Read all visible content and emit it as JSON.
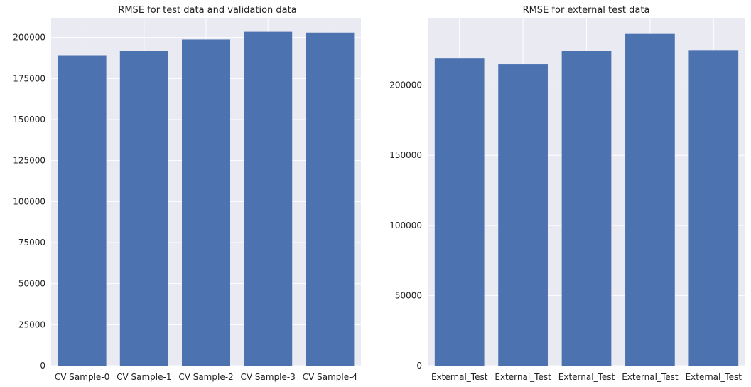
{
  "colors": {
    "bar": "#4c72b0",
    "plot_background": "#eaeaf2",
    "grid": "#ffffff"
  },
  "chart_data": [
    {
      "type": "bar",
      "title": "RMSE for test data and validation data",
      "categories": [
        "CV Sample-0",
        "CV Sample-1",
        "CV Sample-2",
        "CV Sample-3",
        "CV Sample-4"
      ],
      "values": [
        188800,
        192000,
        198800,
        203500,
        203000
      ],
      "ylim": [
        0,
        212000
      ],
      "yticks": [
        0,
        25000,
        50000,
        75000,
        100000,
        125000,
        150000,
        175000,
        200000
      ],
      "grid": true
    },
    {
      "type": "bar",
      "title": "RMSE for external test data",
      "categories": [
        "External_Test",
        "External_Test",
        "External_Test",
        "External_Test",
        "External_Test"
      ],
      "values": [
        219000,
        215000,
        224500,
        236500,
        225000
      ],
      "ylim": [
        0,
        248000
      ],
      "yticks": [
        0,
        50000,
        100000,
        150000,
        200000
      ],
      "grid": true
    }
  ]
}
